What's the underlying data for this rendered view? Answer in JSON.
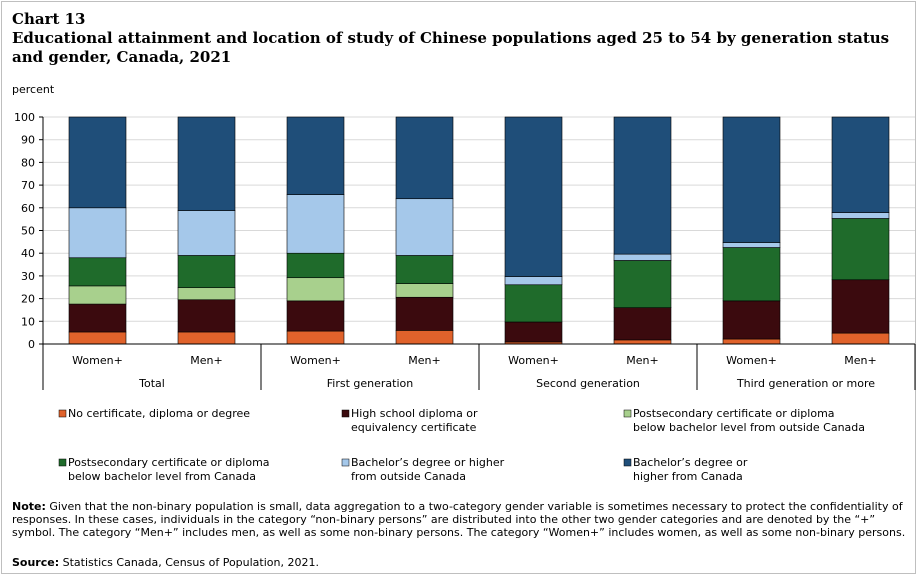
{
  "header": {
    "chart_number": "Chart 13",
    "title": "Educational attainment and location of study of Chinese populations  aged 25 to 54 by generation status and gender, Canada, 2021"
  },
  "footer": {
    "note_label": "Note:",
    "note_text": " Given that the non-binary population is small, data aggregation to a two-category gender variable is sometimes necessary to protect the confidentiality of responses. In these cases, individuals in the category “non-binary persons” are distributed into the other two gender categories and are denoted by the “+” symbol. The category “Men+” includes men, as well as some non-binary persons. The category “Women+” includes women, as well as some non-binary persons.",
    "source_label": "Source:",
    "source_text": " Statistics Canada, Census of Population, 2021."
  },
  "chart_data": {
    "type": "bar",
    "stacked": true,
    "ylabel": "percent",
    "ylim": [
      0,
      100
    ],
    "yticks": [
      0,
      10,
      20,
      30,
      40,
      50,
      60,
      70,
      80,
      90,
      100
    ],
    "categories": [
      "Women+",
      "Men+",
      "Women+",
      "Men+",
      "Women+",
      "Men+",
      "Women+",
      "Men+"
    ],
    "groups": [
      {
        "label": "Total",
        "categories": [
          0,
          1
        ]
      },
      {
        "label": "First generation",
        "categories": [
          2,
          3
        ]
      },
      {
        "label": "Second generation",
        "categories": [
          4,
          5
        ]
      },
      {
        "label": "Third generation or more",
        "categories": [
          6,
          7
        ]
      }
    ],
    "series": [
      {
        "name": "No certificate, diploma or degree",
        "color": "#e0622b",
        "values": [
          5.3,
          5.3,
          5.7,
          6.0,
          0.9,
          1.8,
          2.2,
          4.8
        ]
      },
      {
        "name": "High school diploma or equivalency certificate",
        "color": "#3b0a0e",
        "values": [
          12.3,
          14.2,
          13.3,
          14.6,
          8.8,
          14.2,
          16.8,
          23.5
        ]
      },
      {
        "name": "Postsecondary certificate or diploma below bachelor level from outside Canada",
        "color": "#a8d08d",
        "values": [
          8.0,
          5.3,
          10.2,
          6.0,
          0.0,
          0.0,
          0.0,
          0.0
        ]
      },
      {
        "name": "Postsecondary certificate or diploma below bachelor level from Canada",
        "color": "#1f6b2b",
        "values": [
          12.4,
          14.2,
          10.8,
          12.4,
          16.4,
          20.8,
          23.5,
          27.0
        ]
      },
      {
        "name": "Bachelor's degree or higher from outside Canada",
        "color": "#a5c8ea",
        "values": [
          22.0,
          19.8,
          25.8,
          25.0,
          3.6,
          2.8,
          2.2,
          2.6
        ]
      },
      {
        "name": "Bachelor's degree or higher from Canada",
        "color": "#1f4e79",
        "values": [
          40.0,
          41.2,
          34.2,
          36.0,
          70.3,
          60.4,
          55.3,
          42.1
        ]
      }
    ],
    "legend": [
      {
        "line1": "No certificate, diploma or degree",
        "line2": ""
      },
      {
        "line1": "High school diploma or",
        "line2": "equivalency certificate"
      },
      {
        "line1": "Postsecondary certificate or diploma",
        "line2": "below bachelor level from outside Canada"
      },
      {
        "line1": "Postsecondary certificate or diploma",
        "line2": "below bachelor level from Canada"
      },
      {
        "line1": "Bachelor’s degree or higher",
        "line2": "from outside Canada"
      },
      {
        "line1": "Bachelor’s degree or",
        "line2": "higher from Canada"
      }
    ]
  }
}
